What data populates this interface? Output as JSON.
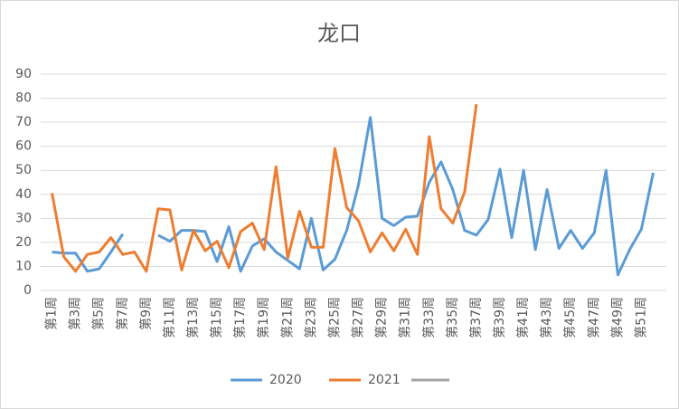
{
  "chart_data": {
    "type": "line",
    "title": "龙口",
    "categories": [
      "第1周",
      null,
      "第3周",
      null,
      "第5周",
      null,
      "第7周",
      null,
      "第9周",
      null,
      "第11周",
      null,
      "第13周",
      null,
      "第15周",
      null,
      "第17周",
      null,
      "第19周",
      null,
      "第21周",
      null,
      "第23周",
      null,
      "第25周",
      null,
      "第27周",
      null,
      "第29周",
      null,
      "第31周",
      null,
      "第33周",
      null,
      "第35周",
      null,
      "第37周",
      null,
      "第39周",
      null,
      "第41周",
      null,
      "第43周",
      null,
      "第45周",
      null,
      "第47周",
      null,
      "第49周",
      null,
      "第51周",
      null
    ],
    "series": [
      {
        "name": "2020",
        "color": "#5b9bd5",
        "values": [
          16,
          15.5,
          15.5,
          8,
          9,
          16,
          23.5,
          null,
          null,
          23,
          20.5,
          25,
          25,
          24.5,
          12,
          26.5,
          8,
          18.5,
          21.5,
          16,
          12.5,
          9,
          30,
          8.5,
          13,
          25,
          44,
          72,
          30,
          27,
          30.5,
          31,
          45,
          53.5,
          42,
          25,
          23,
          29.5,
          50.5,
          22,
          50,
          17,
          42,
          17.5,
          25,
          17.5,
          24,
          50,
          6.5,
          17,
          25.5,
          49
        ]
      },
      {
        "name": "2021",
        "color": "#ed7d31",
        "values": [
          40.5,
          14,
          8,
          15,
          16,
          22,
          15,
          16,
          8,
          34,
          33.5,
          8.5,
          25,
          16.5,
          20.5,
          9.5,
          24.5,
          28,
          17,
          51.5,
          13.5,
          33,
          18,
          18,
          59,
          34.5,
          29,
          16,
          24,
          16.5,
          25.5,
          15,
          64,
          34,
          28,
          41,
          77.5,
          null,
          null,
          null,
          null,
          null,
          null,
          null,
          null,
          null,
          null,
          null,
          null,
          null,
          null,
          null
        ]
      }
    ],
    "ylim": [
      0,
      90
    ],
    "yticks": [
      0,
      10,
      20,
      30,
      40,
      50,
      60,
      70,
      80,
      90
    ],
    "grid": true
  }
}
